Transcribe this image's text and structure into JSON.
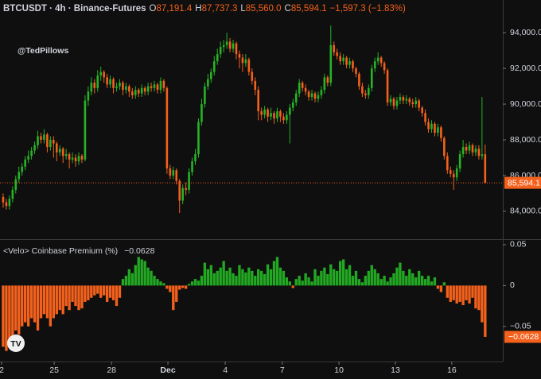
{
  "chart_data": [
    {
      "type": "candlestick",
      "title": "BTCUSDT · 4h · Binance-Futures",
      "ohlc_header": [
        {
          "key": "O",
          "value": "87,191.4"
        },
        {
          "key": "H",
          "value": "87,737.3"
        },
        {
          "key": "L",
          "value": "85,560.0"
        },
        {
          "key": "C",
          "value": "85,594.1"
        }
      ],
      "change_label": "−1,597.3 (−1.83%)",
      "watermark": "@TedPillows",
      "last_price_label": "85,594.1",
      "up_color": "#26b426",
      "down_color": "#f4611c",
      "xlim": [
        -1,
        158.6
      ],
      "xticks": [
        {
          "value": -0.5,
          "label": "2"
        },
        {
          "value": 16.2,
          "label": "25"
        },
        {
          "value": 34.4,
          "label": "28"
        },
        {
          "value": 52.3,
          "label": "Dec"
        },
        {
          "value": 70.5,
          "label": "4"
        },
        {
          "value": 88.6,
          "label": "7"
        },
        {
          "value": 106.6,
          "label": "10"
        },
        {
          "value": 124.5,
          "label": "13"
        },
        {
          "value": 142.4,
          "label": "16"
        }
      ],
      "ylim": [
        82440,
        95830
      ],
      "yticks": [
        {
          "value": 84000,
          "label": "84,000.0"
        },
        {
          "value": 86000,
          "label": "86,000.0"
        },
        {
          "value": 88000,
          "label": "88,000.0"
        },
        {
          "value": 90000,
          "label": "90,000.0"
        },
        {
          "value": 92000,
          "label": "92,000.0"
        },
        {
          "value": 94000,
          "label": "94,000.0"
        }
      ],
      "ohlc": [
        [
          84800,
          85000,
          84200,
          84500
        ],
        [
          84500,
          84700,
          84100,
          84300
        ],
        [
          84300,
          84900,
          84100,
          84700
        ],
        [
          84700,
          85400,
          84500,
          85200
        ],
        [
          85200,
          86000,
          85000,
          85800
        ],
        [
          85800,
          86500,
          85600,
          86200
        ],
        [
          86200,
          86700,
          86000,
          86500
        ],
        [
          86500,
          87100,
          86300,
          86900
        ],
        [
          86900,
          87400,
          86700,
          87100
        ],
        [
          87100,
          87600,
          86900,
          87400
        ],
        [
          87400,
          87900,
          87200,
          87700
        ],
        [
          87700,
          88500,
          87500,
          88200
        ],
        [
          88200,
          88400,
          87800,
          88000
        ],
        [
          88000,
          88600,
          87800,
          88300
        ],
        [
          88300,
          88400,
          87300,
          87600
        ],
        [
          87600,
          88200,
          87400,
          88000
        ],
        [
          88000,
          88200,
          87000,
          87800
        ],
        [
          87800,
          87900,
          86800,
          87300
        ],
        [
          87300,
          87700,
          87100,
          87500
        ],
        [
          87500,
          87600,
          86700,
          87100
        ],
        [
          87100,
          87500,
          86900,
          87200
        ],
        [
          87200,
          87300,
          86400,
          86900
        ],
        [
          86900,
          87300,
          86700,
          87000
        ],
        [
          87000,
          87200,
          86500,
          86800
        ],
        [
          86800,
          87300,
          86600,
          87100
        ],
        [
          87100,
          87200,
          86700,
          86900
        ],
        [
          86900,
          90500,
          86800,
          90200
        ],
        [
          90200,
          91000,
          89900,
          90700
        ],
        [
          90700,
          91500,
          90500,
          91200
        ],
        [
          91200,
          91400,
          90600,
          90900
        ],
        [
          90900,
          91900,
          90700,
          91600
        ],
        [
          91600,
          92100,
          91300,
          91800
        ],
        [
          91800,
          91900,
          91200,
          91500
        ],
        [
          91500,
          91700,
          90900,
          91100
        ],
        [
          91100,
          91600,
          90900,
          91400
        ],
        [
          91400,
          91500,
          90600,
          90900
        ],
        [
          90900,
          91200,
          90700,
          91000
        ],
        [
          91000,
          91400,
          90800,
          91200
        ],
        [
          91200,
          91300,
          90500,
          90800
        ],
        [
          90800,
          91200,
          90600,
          91000
        ],
        [
          91000,
          91100,
          90400,
          90700
        ],
        [
          90700,
          90900,
          90300,
          90500
        ],
        [
          90500,
          91000,
          90300,
          90800
        ],
        [
          90800,
          90900,
          90400,
          90600
        ],
        [
          90600,
          91100,
          90400,
          90900
        ],
        [
          90900,
          91000,
          90500,
          90700
        ],
        [
          90700,
          91200,
          90500,
          91000
        ],
        [
          91000,
          91200,
          90700,
          90900
        ],
        [
          90900,
          91300,
          90700,
          91100
        ],
        [
          91100,
          91200,
          90600,
          90800
        ],
        [
          90800,
          91500,
          90600,
          91300
        ],
        [
          91300,
          91400,
          90700,
          90900
        ],
        [
          90900,
          91000,
          86100,
          86400
        ],
        [
          86400,
          86600,
          85800,
          86000
        ],
        [
          86000,
          86500,
          85800,
          86300
        ],
        [
          86300,
          86400,
          85500,
          85700
        ],
        [
          85700,
          85800,
          83900,
          84600
        ],
        [
          84600,
          85500,
          84400,
          85300
        ],
        [
          85300,
          85600,
          84900,
          85200
        ],
        [
          85200,
          86400,
          85000,
          86200
        ],
        [
          86200,
          87000,
          86000,
          86800
        ],
        [
          86800,
          87500,
          86600,
          87200
        ],
        [
          87200,
          89200,
          87000,
          89000
        ],
        [
          89000,
          90300,
          88800,
          90000
        ],
        [
          90000,
          91200,
          89800,
          91000
        ],
        [
          91000,
          91700,
          90800,
          91400
        ],
        [
          91400,
          92000,
          91200,
          91800
        ],
        [
          91800,
          92700,
          91600,
          92400
        ],
        [
          92400,
          93100,
          92200,
          92800
        ],
        [
          92800,
          93500,
          92600,
          93200
        ],
        [
          93200,
          93600,
          92900,
          93300
        ],
        [
          93300,
          94000,
          93100,
          93500
        ],
        [
          93500,
          93700,
          92900,
          93100
        ],
        [
          93100,
          93600,
          92900,
          93400
        ],
        [
          93400,
          93500,
          92500,
          92800
        ],
        [
          92800,
          93000,
          92000,
          92600
        ],
        [
          92600,
          92800,
          91800,
          92300
        ],
        [
          92300,
          92800,
          92100,
          92500
        ],
        [
          92500,
          92600,
          91600,
          91800
        ],
        [
          91800,
          92000,
          91100,
          91300
        ],
        [
          91300,
          91500,
          90500,
          90800
        ],
        [
          90800,
          91000,
          89100,
          89600
        ],
        [
          89600,
          89800,
          89100,
          89400
        ],
        [
          89400,
          89900,
          89200,
          89700
        ],
        [
          89700,
          89800,
          89000,
          89300
        ],
        [
          89300,
          89800,
          89100,
          89500
        ],
        [
          89500,
          89600,
          88900,
          89200
        ],
        [
          89200,
          89800,
          89000,
          89600
        ],
        [
          89600,
          89700,
          89000,
          89300
        ],
        [
          89300,
          89500,
          88900,
          89100
        ],
        [
          89100,
          89600,
          88900,
          89400
        ],
        [
          89400,
          90000,
          87800,
          89800
        ],
        [
          89800,
          90300,
          89600,
          90100
        ],
        [
          90100,
          90800,
          89900,
          90600
        ],
        [
          90600,
          91400,
          90400,
          91200
        ],
        [
          91200,
          91300,
          90700,
          90900
        ],
        [
          90900,
          91100,
          90500,
          90700
        ],
        [
          90700,
          90800,
          90200,
          90400
        ],
        [
          90400,
          90800,
          90200,
          90600
        ],
        [
          90600,
          90700,
          90100,
          90300
        ],
        [
          90300,
          90700,
          90100,
          90500
        ],
        [
          90500,
          91000,
          90300,
          90800
        ],
        [
          90800,
          91700,
          90600,
          91500
        ],
        [
          91500,
          91600,
          91000,
          91200
        ],
        [
          91200,
          94400,
          91000,
          93300
        ],
        [
          93300,
          93500,
          92700,
          92900
        ],
        [
          92900,
          93100,
          92500,
          92700
        ],
        [
          92700,
          92900,
          92200,
          92400
        ],
        [
          92400,
          92800,
          92200,
          92600
        ],
        [
          92600,
          92700,
          92000,
          92200
        ],
        [
          92200,
          92600,
          92000,
          92400
        ],
        [
          92400,
          92500,
          91800,
          92000
        ],
        [
          92000,
          92100,
          91500,
          91700
        ],
        [
          91700,
          91800,
          90800,
          91000
        ],
        [
          91000,
          91200,
          90400,
          90600
        ],
        [
          90600,
          90800,
          90300,
          90500
        ],
        [
          90500,
          91100,
          90300,
          90900
        ],
        [
          90900,
          92200,
          90700,
          92000
        ],
        [
          92000,
          92600,
          91800,
          92400
        ],
        [
          92400,
          92900,
          92200,
          92600
        ],
        [
          92600,
          92700,
          92100,
          92300
        ],
        [
          92300,
          92400,
          91700,
          91900
        ],
        [
          91900,
          92000,
          89900,
          90100
        ],
        [
          90100,
          90500,
          89900,
          90300
        ],
        [
          90300,
          90400,
          89700,
          89900
        ],
        [
          89900,
          90400,
          89700,
          90200
        ],
        [
          90200,
          90600,
          90000,
          90400
        ],
        [
          90400,
          90500,
          90000,
          90200
        ],
        [
          90200,
          90500,
          90000,
          90300
        ],
        [
          90300,
          90400,
          89900,
          90100
        ],
        [
          90100,
          90300,
          89800,
          90000
        ],
        [
          90000,
          90400,
          89800,
          90200
        ],
        [
          90200,
          90300,
          89600,
          89800
        ],
        [
          89800,
          89900,
          89300,
          89500
        ],
        [
          89500,
          89700,
          88800,
          89000
        ],
        [
          89000,
          89200,
          88400,
          88600
        ],
        [
          88600,
          89100,
          88400,
          88900
        ],
        [
          88900,
          89000,
          88200,
          88400
        ],
        [
          88400,
          88900,
          88200,
          88700
        ],
        [
          88700,
          88800,
          87900,
          88100
        ],
        [
          88100,
          88200,
          86900,
          87100
        ],
        [
          87100,
          87300,
          86100,
          86300
        ],
        [
          86300,
          86500,
          85900,
          86100
        ],
        [
          86100,
          86300,
          85200,
          85900
        ],
        [
          85900,
          86600,
          85700,
          86400
        ],
        [
          86400,
          87400,
          86200,
          87200
        ],
        [
          87200,
          88000,
          87000,
          87600
        ],
        [
          87600,
          87800,
          87200,
          87400
        ],
        [
          87400,
          87900,
          87200,
          87700
        ],
        [
          87700,
          87800,
          87100,
          87300
        ],
        [
          87300,
          87700,
          87100,
          87500
        ],
        [
          87500,
          87700,
          86900,
          87100
        ],
        [
          87100,
          90400,
          86900,
          87191.4
        ],
        [
          87191.4,
          87737.3,
          85560,
          85594.1
        ]
      ]
    },
    {
      "type": "bar",
      "title": "<Velo> Coinbase Premium (%)",
      "last_value_label": "−0.0628",
      "up_color": "#22a822",
      "down_color": "#f4611c",
      "ylim": [
        -0.093,
        0.0558
      ],
      "yticks": [
        0.05,
        0,
        {
          "value": -0.05,
          "label": "−0.05"
        }
      ],
      "values": [
        -0.075,
        -0.08,
        -0.07,
        -0.065,
        -0.055,
        -0.06,
        -0.05,
        -0.045,
        -0.05,
        -0.04,
        -0.045,
        -0.055,
        -0.04,
        -0.035,
        -0.04,
        -0.05,
        -0.04,
        -0.035,
        -0.03,
        -0.035,
        -0.025,
        -0.03,
        -0.02,
        -0.025,
        -0.03,
        -0.028,
        -0.02,
        -0.018,
        -0.015,
        -0.012,
        -0.01,
        -0.015,
        -0.012,
        -0.02,
        -0.015,
        -0.018,
        -0.025,
        -0.015,
        0.008,
        0.012,
        0.02,
        0.015,
        0.025,
        0.035,
        0.032,
        0.03,
        0.022,
        0.018,
        0.012,
        0.008,
        0.005,
        0.003,
        -0.004,
        -0.008,
        -0.03,
        -0.02,
        -0.005,
        -0.003,
        -0.004,
        0.002,
        0.005,
        0.008,
        0.006,
        0.012,
        0.028,
        0.02,
        0.025,
        0.015,
        0.018,
        0.022,
        0.03,
        0.018,
        0.022,
        0.015,
        0.012,
        0.025,
        0.02,
        0.016,
        0.022,
        0.018,
        0.012,
        0.02,
        0.018,
        0.014,
        0.026,
        0.02,
        0.03,
        0.035,
        0.022,
        0.018,
        0.01,
        0.005,
        -0.003,
        0.008,
        0.012,
        0.006,
        0.015,
        0.01,
        0.005,
        0.02,
        0.012,
        0.018,
        0.022,
        0.014,
        0.026,
        0.02,
        0.018,
        0.03,
        0.032,
        0.02,
        0.025,
        0.012,
        0.018,
        0.008,
        0.004,
        0.012,
        0.018,
        0.025,
        0.02,
        0.015,
        0.008,
        0.012,
        0.005,
        0.01,
        0.015,
        0.022,
        0.028,
        0.018,
        0.012,
        0.02,
        0.015,
        0.01,
        0.018,
        0.012,
        0.008,
        0.012,
        0.005,
        0.01,
        -0.004,
        -0.008,
        0.004,
        -0.015,
        -0.02,
        -0.018,
        -0.022,
        -0.02,
        -0.024,
        -0.018,
        -0.022,
        -0.015,
        -0.028,
        -0.03,
        -0.045,
        -0.0628
      ]
    }
  ]
}
